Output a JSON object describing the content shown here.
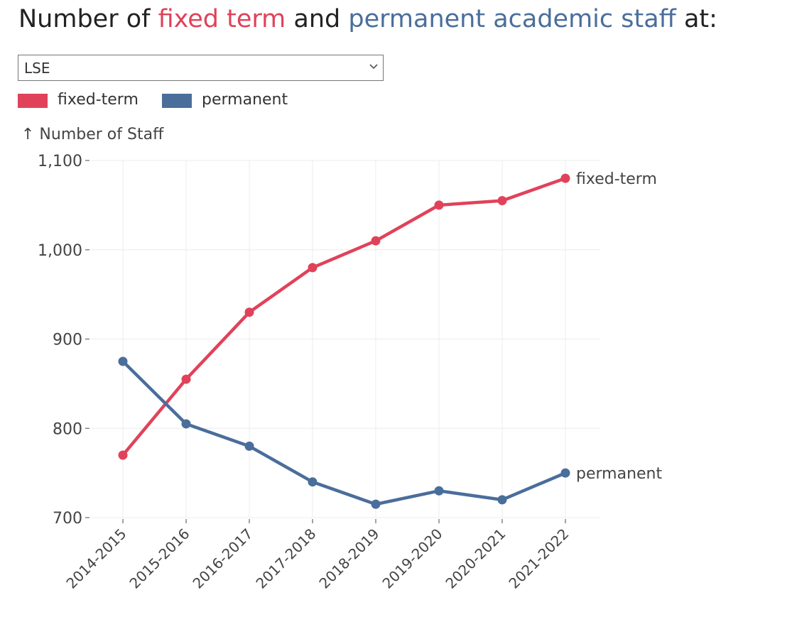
{
  "title": {
    "prefix": "Number of ",
    "fixed": "fixed term",
    "middle": " and ",
    "permanent": "permanent academic staff",
    "suffix": " at:"
  },
  "institution_select": {
    "value": "LSE",
    "icon": "chevron-down-icon"
  },
  "legend": [
    {
      "label": "fixed-term",
      "color": "#e0425a"
    },
    {
      "label": "permanent",
      "color": "#4a6e9b"
    }
  ],
  "chart_data": {
    "type": "line",
    "ylabel": "↑ Number of Staff",
    "ylim": [
      700,
      1100
    ],
    "yticks": [
      700,
      800,
      900,
      1000,
      1100
    ],
    "ytick_labels": [
      "700",
      "800",
      "900",
      "1,000",
      "1,100"
    ],
    "categories": [
      "2014-2015",
      "2015-2016",
      "2016-2017",
      "2017-2018",
      "2018-2019",
      "2019-2020",
      "2020-2021",
      "2021-2022"
    ],
    "grid": true,
    "series": [
      {
        "name": "fixed-term",
        "color": "#e0425a",
        "values": [
          770,
          855,
          930,
          980,
          1010,
          1050,
          1055,
          1080
        ]
      },
      {
        "name": "permanent",
        "color": "#4a6e9b",
        "values": [
          875,
          805,
          780,
          740,
          715,
          730,
          720,
          750
        ]
      }
    ]
  }
}
